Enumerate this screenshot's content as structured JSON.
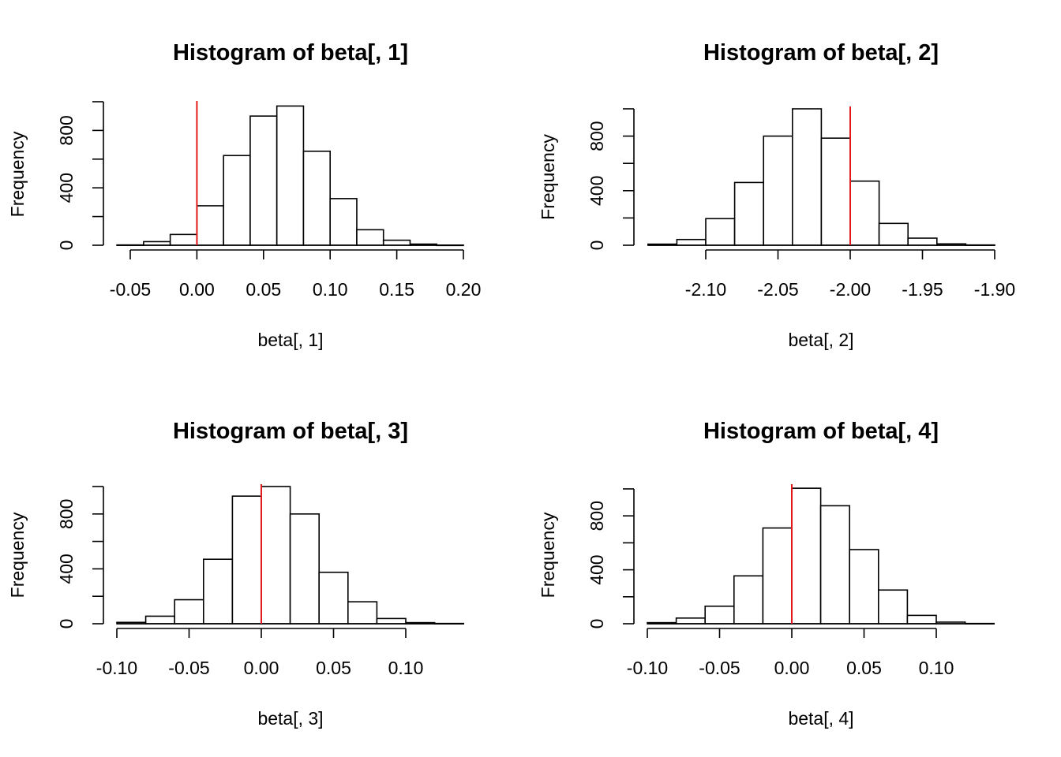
{
  "chart_data": [
    {
      "type": "bar",
      "title": "Histogram of beta[, 1]",
      "xlabel": "beta[, 1]",
      "ylabel": "Frequency",
      "bin_edges": [
        -0.06,
        -0.04,
        -0.02,
        0.0,
        0.02,
        0.04,
        0.06,
        0.08,
        0.1,
        0.12,
        0.14,
        0.16,
        0.18,
        0.2
      ],
      "values": [
        2,
        25,
        75,
        275,
        625,
        900,
        970,
        655,
        325,
        108,
        35,
        8,
        1
      ],
      "xticks": [
        -0.05,
        0.0,
        0.05,
        0.1,
        0.15,
        0.2
      ],
      "xtick_labels": [
        "-0.05",
        "0.00",
        "0.05",
        "0.10",
        "0.15",
        "0.20"
      ],
      "xaxis_range": [
        -0.05,
        0.2
      ],
      "yticks": [
        0,
        200,
        400,
        600,
        800,
        1000
      ],
      "ytick_labels": [
        "0",
        "",
        "400",
        "",
        "800",
        ""
      ],
      "vline": 0.0,
      "vline_color": "#e41a1c"
    },
    {
      "type": "bar",
      "title": "Histogram of beta[, 2]",
      "xlabel": "beta[, 2]",
      "ylabel": "Frequency",
      "bin_edges": [
        -2.14,
        -2.12,
        -2.1,
        -2.08,
        -2.06,
        -2.04,
        -2.02,
        -2.0,
        -1.98,
        -1.96,
        -1.94,
        -1.92,
        -1.9
      ],
      "values": [
        8,
        42,
        195,
        460,
        800,
        1000,
        785,
        470,
        160,
        52,
        10,
        2
      ],
      "xticks": [
        -2.1,
        -2.05,
        -2.0,
        -1.95,
        -1.9
      ],
      "xtick_labels": [
        "-2.10",
        "-2.05",
        "-2.00",
        "-1.95",
        "-1.90"
      ],
      "xaxis_range": [
        -2.1,
        -1.9
      ],
      "yticks": [
        0,
        200,
        400,
        600,
        800,
        1000
      ],
      "ytick_labels": [
        "0",
        "",
        "400",
        "",
        "800",
        ""
      ],
      "vline": -2.0,
      "vline_color": "#e41a1c"
    },
    {
      "type": "bar",
      "title": "Histogram of beta[, 3]",
      "xlabel": "beta[, 3]",
      "ylabel": "Frequency",
      "bin_edges": [
        -0.1,
        -0.08,
        -0.06,
        -0.04,
        -0.02,
        0.0,
        0.02,
        0.04,
        0.06,
        0.08,
        0.1,
        0.12,
        0.14
      ],
      "values": [
        10,
        55,
        175,
        470,
        930,
        1000,
        800,
        375,
        160,
        38,
        8,
        2
      ],
      "xticks": [
        -0.1,
        -0.05,
        0.0,
        0.05,
        0.1
      ],
      "xtick_labels": [
        "-0.10",
        "-0.05",
        "0.00",
        "0.05",
        "0.10"
      ],
      "xaxis_range": [
        -0.1,
        0.1
      ],
      "yticks": [
        0,
        200,
        400,
        600,
        800,
        1000
      ],
      "ytick_labels": [
        "0",
        "",
        "400",
        "",
        "800",
        ""
      ],
      "vline": 0.0,
      "vline_color": "#e41a1c"
    },
    {
      "type": "bar",
      "title": "Histogram of beta[, 4]",
      "xlabel": "beta[, 4]",
      "ylabel": "Frequency",
      "bin_edges": [
        -0.1,
        -0.08,
        -0.06,
        -0.04,
        -0.02,
        0.0,
        0.02,
        0.04,
        0.06,
        0.08,
        0.1,
        0.12,
        0.14
      ],
      "values": [
        8,
        42,
        130,
        355,
        710,
        1005,
        875,
        550,
        250,
        62,
        12,
        2
      ],
      "xticks": [
        -0.1,
        -0.05,
        0.0,
        0.05,
        0.1
      ],
      "xtick_labels": [
        "-0.10",
        "-0.05",
        "0.00",
        "0.05",
        "0.10"
      ],
      "xaxis_range": [
        -0.1,
        0.1
      ],
      "yticks": [
        0,
        200,
        400,
        600,
        800,
        1000
      ],
      "ytick_labels": [
        "0",
        "",
        "400",
        "",
        "800",
        ""
      ],
      "vline": 0.0,
      "vline_color": "#e41a1c"
    }
  ]
}
